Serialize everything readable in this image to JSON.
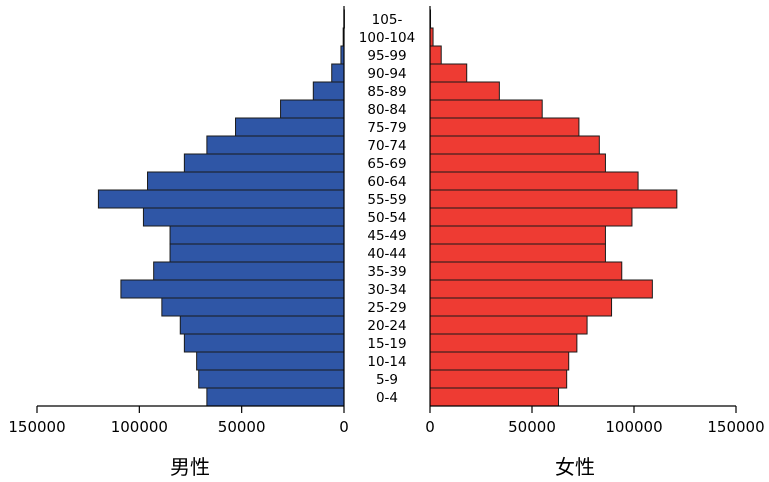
{
  "chart_data": {
    "type": "bar",
    "orientation": "horizontal",
    "subtype": "population-pyramid",
    "categories": [
      "0-4",
      "5-9",
      "10-14",
      "15-19",
      "20-24",
      "25-29",
      "30-34",
      "35-39",
      "40-44",
      "45-49",
      "50-54",
      "55-59",
      "60-64",
      "65-69",
      "70-74",
      "75-79",
      "80-84",
      "85-89",
      "90-94",
      "95-99",
      "100-104",
      "105-"
    ],
    "series": [
      {
        "name": "男性",
        "side": "left",
        "color": "#2f56a6",
        "values": [
          67000,
          71000,
          72000,
          78000,
          80000,
          89000,
          109000,
          93000,
          85000,
          85000,
          98000,
          120000,
          96000,
          78000,
          67000,
          53000,
          31000,
          15000,
          6000,
          1500,
          400,
          50
        ]
      },
      {
        "name": "女性",
        "side": "right",
        "color": "#ee3b33",
        "values": [
          63000,
          67000,
          68000,
          72000,
          77000,
          89000,
          109000,
          94000,
          86000,
          86000,
          99000,
          121000,
          102000,
          86000,
          83000,
          73000,
          55000,
          34000,
          18000,
          5500,
          1500,
          250
        ]
      }
    ],
    "x_ticks_left": [
      "150000",
      "100000",
      "50000",
      "0"
    ],
    "x_ticks_right": [
      "0",
      "50000",
      "100000",
      "150000"
    ],
    "xlim": [
      0,
      150000
    ],
    "grid": false,
    "legend": "none",
    "side_labels": {
      "left": "男性",
      "right": "女性"
    }
  }
}
